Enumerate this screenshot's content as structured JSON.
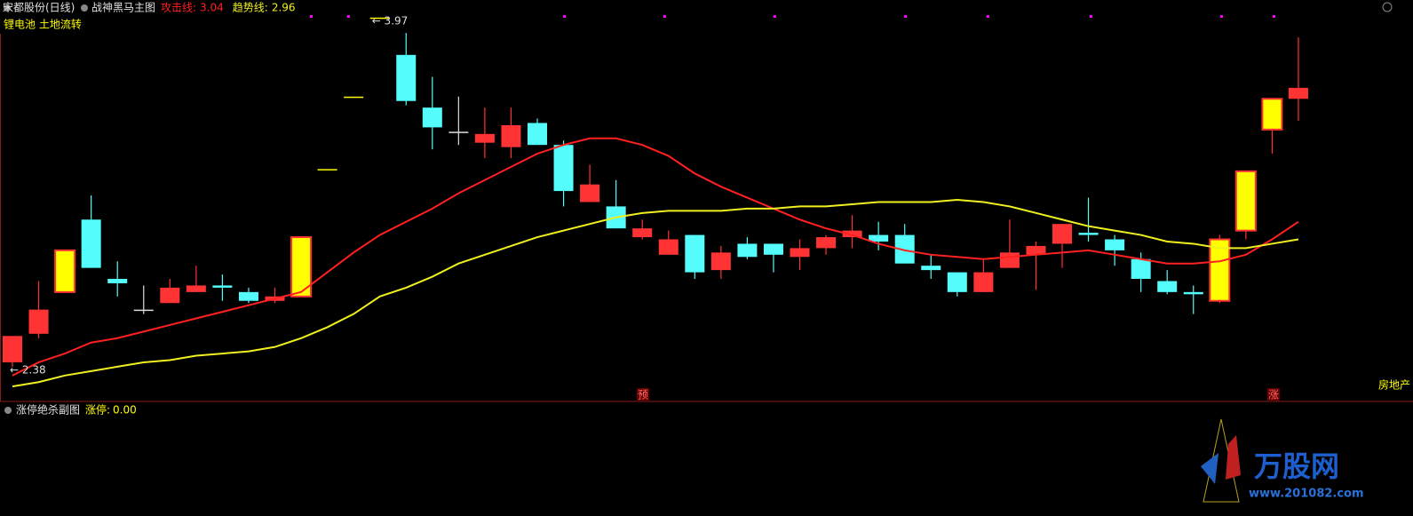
{
  "header": {
    "stock": "宋都股份(日线)",
    "indicator": "战神黑马主图",
    "concepts": "锂电池 土地流转",
    "sector": "房地产",
    "event_a": "预",
    "event_b": "涨"
  },
  "chart_data": {
    "type": "candlestick",
    "open": [
      2.4,
      2.53,
      2.72,
      3.05,
      2.78,
      2.64,
      2.67,
      2.72,
      2.75,
      2.72,
      2.68,
      2.7,
      3.28,
      3.61,
      3.97,
      3.8,
      3.56,
      3.45,
      3.4,
      3.38,
      3.49,
      3.39,
      3.13,
      3.11,
      2.97,
      2.89,
      2.98,
      2.82,
      2.94,
      2.94,
      2.88,
      2.92,
      2.97,
      2.98,
      2.98,
      2.84,
      2.81,
      2.72,
      2.83,
      2.89,
      2.94,
      2.99,
      2.96,
      2.87,
      2.77,
      2.72,
      2.68,
      3.0,
      3.46,
      3.6
    ],
    "close": [
      2.52,
      2.64,
      2.91,
      2.83,
      2.76,
      2.64,
      2.74,
      2.75,
      2.74,
      2.68,
      2.7,
      2.97,
      3.28,
      3.61,
      3.97,
      3.59,
      3.47,
      3.45,
      3.44,
      3.48,
      3.39,
      3.18,
      3.21,
      3.01,
      3.01,
      2.96,
      2.81,
      2.9,
      2.88,
      2.89,
      2.92,
      2.97,
      3.0,
      2.95,
      2.85,
      2.82,
      2.72,
      2.81,
      2.9,
      2.93,
      3.03,
      2.98,
      2.91,
      2.78,
      2.72,
      2.71,
      2.96,
      3.27,
      3.6,
      3.65
    ],
    "high": [
      2.52,
      2.77,
      2.91,
      3.16,
      2.86,
      2.75,
      2.78,
      2.84,
      2.8,
      2.74,
      2.74,
      2.97,
      3.28,
      3.61,
      3.97,
      3.9,
      3.7,
      3.61,
      3.56,
      3.56,
      3.51,
      3.41,
      3.3,
      3.23,
      3.05,
      3.0,
      2.98,
      2.93,
      2.97,
      2.94,
      2.96,
      2.98,
      3.07,
      3.04,
      3.03,
      2.89,
      2.81,
      2.87,
      3.05,
      2.95,
      3.03,
      3.15,
      2.98,
      2.9,
      2.82,
      2.75,
      2.98,
      3.27,
      3.6,
      3.88
    ],
    "low": [
      2.38,
      2.51,
      2.72,
      2.83,
      2.7,
      2.62,
      2.67,
      2.72,
      2.68,
      2.67,
      2.67,
      2.7,
      3.28,
      3.61,
      3.97,
      3.57,
      3.37,
      3.39,
      3.33,
      3.33,
      3.39,
      3.11,
      3.13,
      3.01,
      2.96,
      2.89,
      2.78,
      2.78,
      2.87,
      2.81,
      2.82,
      2.89,
      2.92,
      2.91,
      2.85,
      2.78,
      2.7,
      2.72,
      2.83,
      2.73,
      2.83,
      2.95,
      2.84,
      2.72,
      2.71,
      2.62,
      2.67,
      2.96,
      3.35,
      3.5
    ],
    "colors": [
      "#ff3333",
      "#ff3333",
      "#ffff00",
      "#54fcfc",
      "#54fcfc",
      "#dddddd",
      "#ff3333",
      "#ff3333",
      "#54fcfc",
      "#54fcfc",
      "#ff3333",
      "#ffff00",
      "#ffff00",
      "#ffff00",
      "#ffff00",
      "#54fcfc",
      "#54fcfc",
      "#dddddd",
      "#ff3333",
      "#ff3333",
      "#54fcfc",
      "#54fcfc",
      "#ff3333",
      "#54fcfc",
      "#ff3333",
      "#ff3333",
      "#54fcfc",
      "#ff3333",
      "#54fcfc",
      "#54fcfc",
      "#ff3333",
      "#ff3333",
      "#ff3333",
      "#54fcfc",
      "#54fcfc",
      "#54fcfc",
      "#54fcfc",
      "#ff3333",
      "#ff3333",
      "#ff3333",
      "#ff3333",
      "#54fcfc",
      "#54fcfc",
      "#54fcfc",
      "#54fcfc",
      "#54fcfc",
      "#ffff00",
      "#ffff00",
      "#ffff00",
      "#ff3333"
    ],
    "limit_up_edge": "#ff3333",
    "series": [
      {
        "name": "攻击线:",
        "color": "#ff2020",
        "values": [
          2.34,
          2.4,
          2.44,
          2.49,
          2.51,
          2.54,
          2.57,
          2.6,
          2.63,
          2.66,
          2.69,
          2.72,
          2.81,
          2.9,
          2.98,
          3.04,
          3.1,
          3.17,
          3.23,
          3.29,
          3.35,
          3.39,
          3.42,
          3.42,
          3.39,
          3.34,
          3.26,
          3.2,
          3.15,
          3.1,
          3.05,
          3.01,
          2.98,
          2.94,
          2.91,
          2.89,
          2.88,
          2.87,
          2.88,
          2.89,
          2.9,
          2.91,
          2.89,
          2.87,
          2.85,
          2.85,
          2.86,
          2.89,
          2.96,
          3.04
        ]
      },
      {
        "name": "趋势线:",
        "color": "#f0f020",
        "values": [
          2.29,
          2.31,
          2.34,
          2.36,
          2.38,
          2.4,
          2.41,
          2.43,
          2.44,
          2.45,
          2.47,
          2.51,
          2.56,
          2.62,
          2.7,
          2.74,
          2.79,
          2.85,
          2.89,
          2.93,
          2.97,
          3.0,
          3.03,
          3.06,
          3.08,
          3.09,
          3.09,
          3.09,
          3.1,
          3.1,
          3.11,
          3.11,
          3.12,
          3.13,
          3.13,
          3.13,
          3.14,
          3.13,
          3.11,
          3.08,
          3.05,
          3.02,
          3.0,
          2.98,
          2.95,
          2.94,
          2.92,
          2.92,
          2.94,
          2.96
        ]
      }
    ],
    "max_label": {
      "value": 3.97,
      "label": "← 3.97"
    },
    "min_label": {
      "value": 2.38,
      "label": "← 2.38"
    },
    "ylim": [
      2.23,
      4.05
    ]
  },
  "subchart": {
    "title": "涨停绝杀副图",
    "indicator": "涨停:",
    "value": {
      "value": 0,
      "label": "0.00"
    }
  },
  "watermark": {
    "name": "万股网",
    "url": "www.201082.com"
  }
}
